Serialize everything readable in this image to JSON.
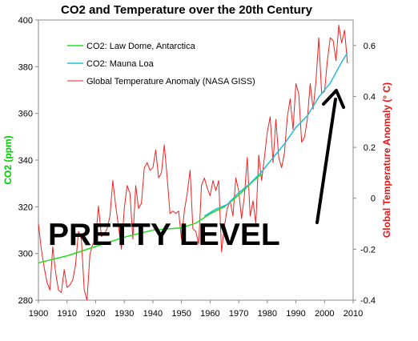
{
  "chart_data": {
    "type": "line",
    "title": "CO2 and Temperature over the 20th Century",
    "xlabel": "",
    "ylabel_left": "CO2 (ppm)",
    "ylabel_right": "Global Temperature Anomaly (° C)",
    "xlim": [
      1900,
      2010
    ],
    "ylim_left": [
      280,
      400
    ],
    "ylim_right": [
      -0.4,
      0.7
    ],
    "x_ticks": [
      "1900",
      "1910",
      "1920",
      "1930",
      "1940",
      "1950",
      "1960",
      "1970",
      "1980",
      "1990",
      "2000",
      "2010"
    ],
    "left_ticks": [
      "280",
      "300",
      "320",
      "340",
      "360",
      "380",
      "400"
    ],
    "right_ticks": [
      "-0.4",
      "-0.2",
      "0",
      "0.2",
      "0.4",
      "0.6"
    ],
    "legend_position": "top-left",
    "colors": {
      "law_dome": "#22dd22",
      "mauna_loa": "#22bbdd",
      "temperature": "#ee2222",
      "left_axis": "#00cc00",
      "right_axis": "#ee1111"
    },
    "series": [
      {
        "name": "CO2: Law Dome, Antarctica",
        "axis": "left",
        "x": [
          1900,
          1910,
          1920,
          1930,
          1940,
          1950,
          1955,
          1960,
          1965,
          1970,
          1975,
          1978
        ],
        "values": [
          296,
          299,
          303,
          307,
          310,
          311,
          313,
          317,
          320,
          325,
          331,
          334
        ]
      },
      {
        "name": "CO2: Mauna Loa",
        "axis": "left",
        "x": [
          1958,
          1962,
          1966,
          1970,
          1974,
          1978,
          1982,
          1986,
          1990,
          1994,
          1998,
          2002,
          2006,
          2008
        ],
        "values": [
          316,
          319,
          321,
          326,
          330,
          335,
          341,
          347,
          354,
          359,
          367,
          373,
          382,
          386
        ]
      },
      {
        "name": "Global Temperature Anomaly (NASA GISS)",
        "axis": "right",
        "x": [
          1900,
          1901,
          1902,
          1903,
          1904,
          1905,
          1906,
          1907,
          1908,
          1909,
          1910,
          1911,
          1912,
          1913,
          1914,
          1915,
          1916,
          1917,
          1918,
          1919,
          1920,
          1921,
          1922,
          1923,
          1924,
          1925,
          1926,
          1927,
          1928,
          1929,
          1930,
          1931,
          1932,
          1933,
          1934,
          1935,
          1936,
          1937,
          1938,
          1939,
          1940,
          1941,
          1942,
          1943,
          1944,
          1945,
          1946,
          1947,
          1948,
          1949,
          1950,
          1951,
          1952,
          1953,
          1954,
          1955,
          1956,
          1957,
          1958,
          1959,
          1960,
          1961,
          1962,
          1963,
          1964,
          1965,
          1966,
          1967,
          1968,
          1969,
          1970,
          1971,
          1972,
          1973,
          1974,
          1975,
          1976,
          1977,
          1978,
          1979,
          1980,
          1981,
          1982,
          1983,
          1984,
          1985,
          1986,
          1987,
          1988,
          1989,
          1990,
          1991,
          1992,
          1993,
          1994,
          1995,
          1996,
          1997,
          1998,
          1999,
          2000,
          2001,
          2002,
          2003,
          2004,
          2005,
          2006,
          2007,
          2008
        ],
        "values": [
          -0.1,
          -0.2,
          -0.27,
          -0.33,
          -0.36,
          -0.19,
          -0.29,
          -0.36,
          -0.37,
          -0.28,
          -0.35,
          -0.34,
          -0.32,
          -0.26,
          -0.13,
          -0.16,
          -0.36,
          -0.4,
          -0.22,
          -0.18,
          -0.16,
          -0.03,
          -0.15,
          -0.14,
          -0.12,
          -0.07,
          0.07,
          -0.03,
          -0.11,
          -0.2,
          -0.04,
          0.05,
          0.02,
          -0.16,
          0.05,
          -0.04,
          -0.02,
          0.12,
          0.14,
          0.11,
          0.12,
          0.19,
          0.08,
          0.1,
          0.21,
          0.08,
          -0.06,
          -0.05,
          -0.06,
          -0.05,
          -0.16,
          -0.05,
          0.02,
          0.11,
          -0.12,
          -0.13,
          -0.18,
          0.05,
          0.08,
          0.04,
          0.01,
          0.07,
          0.03,
          0.07,
          -0.21,
          -0.11,
          -0.04,
          -0.01,
          -0.07,
          0.08,
          0.03,
          -0.08,
          0.01,
          0.16,
          -0.07,
          -0.01,
          -0.1,
          0.17,
          0.07,
          0.16,
          0.26,
          0.32,
          0.14,
          0.31,
          0.16,
          0.12,
          0.18,
          0.32,
          0.39,
          0.27,
          0.45,
          0.41,
          0.22,
          0.24,
          0.31,
          0.45,
          0.35,
          0.46,
          0.63,
          0.41,
          0.42,
          0.54,
          0.63,
          0.62,
          0.54,
          0.68,
          0.61,
          0.66,
          0.53
        ]
      }
    ],
    "annotation": "PRETTY LEVEL"
  }
}
